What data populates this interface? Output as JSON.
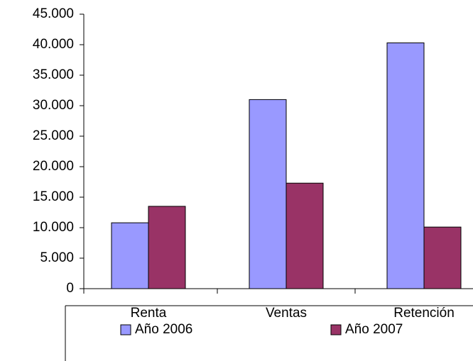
{
  "chart_data": {
    "type": "bar",
    "categories": [
      "Renta",
      "Ventas",
      "Retención"
    ],
    "series": [
      {
        "name": "Año 2006",
        "color": "#9999ff",
        "values": [
          10800,
          31000,
          40300
        ]
      },
      {
        "name": "Año 2007",
        "color": "#993366",
        "values": [
          13500,
          17300,
          10100
        ]
      }
    ],
    "ylim": [
      0,
      45000
    ],
    "yticks": [
      0,
      {
        "value": 5000,
        "label": "5.000"
      },
      {
        "value": 10000,
        "label": "10.000"
      },
      {
        "value": 15000,
        "label": "15.000"
      },
      {
        "value": 20000,
        "label": "20.000"
      },
      {
        "value": 25000,
        "label": "25.000"
      },
      {
        "value": 30000,
        "label": "30.000"
      },
      {
        "value": 35000,
        "label": "35.000"
      },
      {
        "value": 40000,
        "label": "40.000"
      },
      {
        "value": 45000,
        "label": "45.000"
      }
    ],
    "grid": false,
    "legend": "bottom"
  }
}
